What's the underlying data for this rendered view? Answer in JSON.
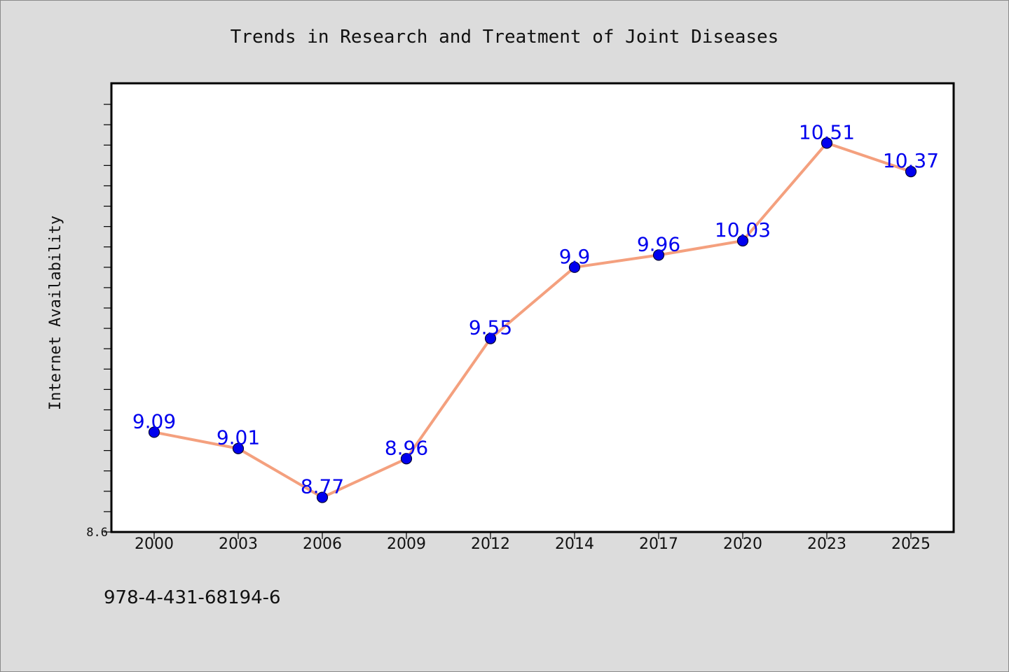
{
  "chart_data": {
    "type": "line",
    "title": "Trends in Research and Treatment of Joint Diseases",
    "xlabel": "",
    "ylabel": "Internet Availability",
    "categories": [
      "2000",
      "2003",
      "2006",
      "2009",
      "2012",
      "2014",
      "2017",
      "2020",
      "2023",
      "2025"
    ],
    "series": [
      {
        "values": [
          9.09,
          9.01,
          8.77,
          8.96,
          9.55,
          9.9,
          9.96,
          10.03,
          10.51,
          10.37
        ],
        "labels": [
          "9.09",
          "9.01",
          "8.77",
          "8.96",
          "9.55",
          "9.9",
          "9.96",
          "10.03",
          "10.51",
          "10.37"
        ]
      }
    ],
    "ylim": [
      8.6,
      10.8
    ],
    "y_tick_labels": [
      "8.6"
    ],
    "grid": false,
    "line_color": "#f4a07e",
    "marker_color": "#0000ee",
    "label_color": "#0000ee"
  },
  "footer": {
    "isbn": "978-4-431-68194-6"
  }
}
